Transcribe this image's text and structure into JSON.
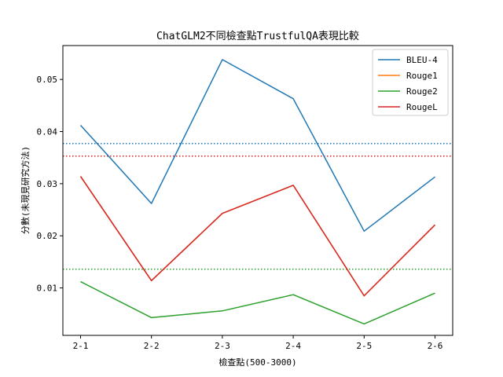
{
  "chart_data": {
    "type": "line",
    "title": "ChatGLM2不同檢查點TrustfulQA表現比較",
    "xlabel": "檢查點(500-3000)",
    "ylabel": "分數(未現見研究方法)",
    "categories": [
      "2-1",
      "2-2",
      "2-3",
      "2-4",
      "2-5",
      "2-6"
    ],
    "ylim": [
      0.0009,
      0.0565
    ],
    "yticks": [
      0.01,
      0.02,
      0.03,
      0.04,
      0.05
    ],
    "ytick_labels": [
      "0.01",
      "0.02",
      "0.03",
      "0.04",
      "0.05"
    ],
    "grid": false,
    "legend_position": "top-right",
    "series": [
      {
        "name": "BLEU-4",
        "color": "#1f77b4",
        "values": [
          0.0412,
          0.0262,
          0.0538,
          0.0463,
          0.0209,
          0.0313
        ]
      },
      {
        "name": "Rouge1",
        "color": "#ff7f0e",
        "values": [
          0.0314,
          0.0114,
          0.0243,
          0.0297,
          0.0085,
          0.0221
        ]
      },
      {
        "name": "Rouge2",
        "color": "#2ca02c",
        "values": [
          0.0112,
          0.0043,
          0.0056,
          0.0087,
          0.0031,
          0.009
        ]
      },
      {
        "name": "RougeL",
        "color": "#d62728",
        "values": [
          0.0314,
          0.0114,
          0.0243,
          0.0297,
          0.0085,
          0.0221
        ]
      }
    ],
    "reference_lines": [
      {
        "series": "BLEU-4",
        "color": "#1f77b4",
        "value": 0.0377,
        "style": "dotted"
      },
      {
        "series": "Rouge1",
        "color": "#ff7f0e",
        "value": 0.0353,
        "style": "dotted"
      },
      {
        "series": "Rouge2",
        "color": "#2ca02c",
        "value": 0.0136,
        "style": "dotted"
      },
      {
        "series": "RougeL",
        "color": "#d62728",
        "value": 0.0353,
        "style": "dotted"
      }
    ]
  }
}
